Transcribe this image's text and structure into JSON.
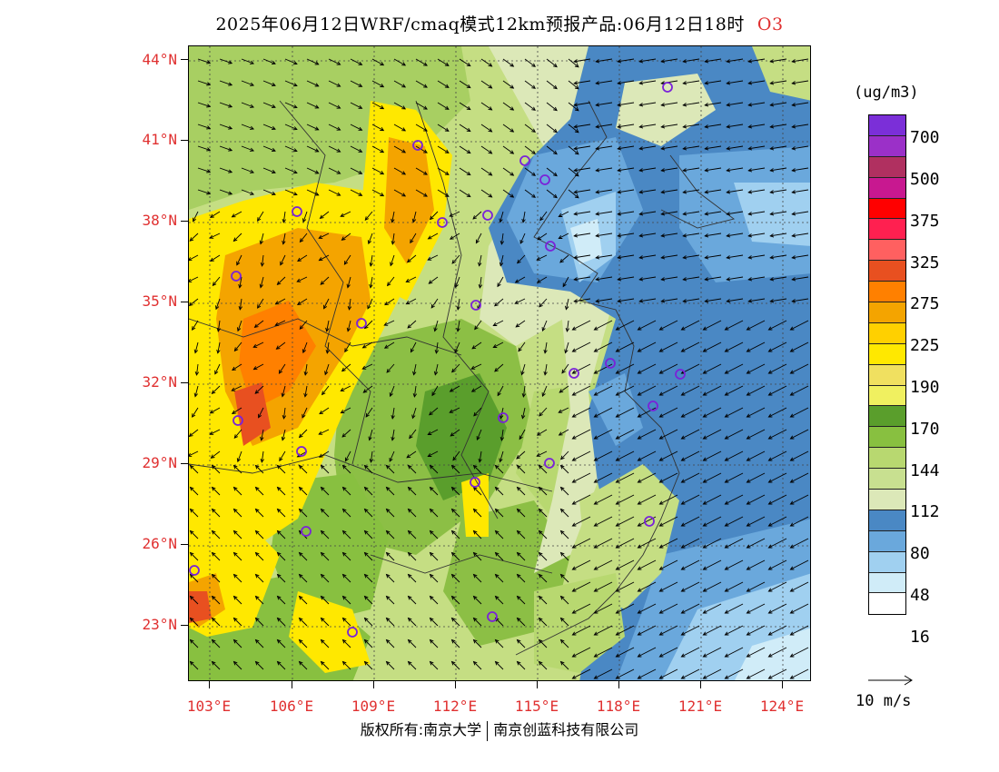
{
  "header": {
    "title": "2025年06月12日WRF/cmaq模式12km预报产品:06月12日18时",
    "pollutant": "O3"
  },
  "axes": {
    "lat_labels": [
      "44°N",
      "41°N",
      "38°N",
      "35°N",
      "32°N",
      "29°N",
      "26°N",
      "23°N"
    ],
    "lon_labels": [
      "103°E",
      "106°E",
      "109°E",
      "112°E",
      "115°E",
      "118°E",
      "121°E",
      "124°E"
    ]
  },
  "legend": {
    "unit": "(ug/m3)",
    "colors": [
      "#7b2fd8",
      "#9b30c8",
      "#b03060",
      "#c81890",
      "#ff0000",
      "#ff2050",
      "#ff6060",
      "#e85020",
      "#ff8000",
      "#f4a400",
      "#ffd000",
      "#ffe800",
      "#f0e060",
      "#f0f060",
      "#5a9e2c",
      "#88c040",
      "#b8d870",
      "#c8e090",
      "#dce8b8",
      "#4a88c4",
      "#6aa8dc",
      "#a0d0f0",
      "#d0ecf8",
      "#ffffff"
    ],
    "labels": [
      "700",
      "500",
      "375",
      "325",
      "275",
      "225",
      "190",
      "170",
      "144",
      "112",
      "80",
      "48",
      "16"
    ],
    "vector_label": "10 m/s"
  },
  "footer": {
    "copyright_left": "版权所有:南京大学",
    "copyright_right": "南京创蓝科技有限公司"
  },
  "map": {
    "stations_count": 24,
    "grid": "dotted"
  }
}
